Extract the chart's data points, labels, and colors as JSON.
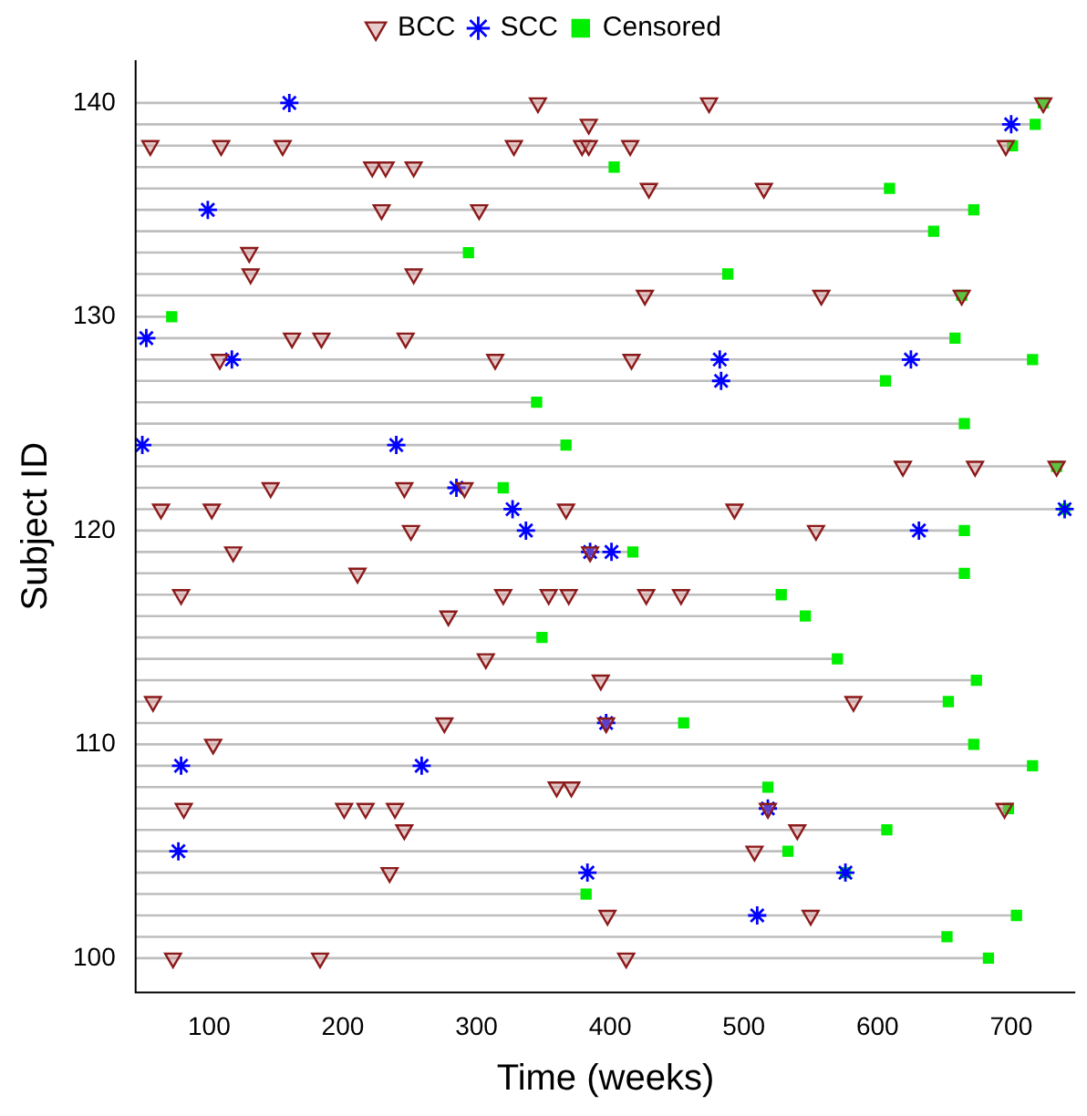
{
  "chart_data": {
    "type": "scatter",
    "xlabel": "Time (weeks)",
    "ylabel": "Subject ID",
    "xlim": [
      45,
      748
    ],
    "xticks": [
      100,
      200,
      300,
      400,
      500,
      600,
      700
    ],
    "ylim": [
      98.4,
      142
    ],
    "yticks": [
      100,
      110,
      120,
      130,
      140
    ],
    "legend": "top",
    "grid": false,
    "series": [
      {
        "name": "BCC",
        "color": "#8b1a1a",
        "marker": "triangle",
        "x": [
          346,
          474,
          724,
          384,
          56,
          109,
          155,
          328,
          379,
          384,
          415,
          696,
          222,
          232,
          253,
          429,
          515,
          229,
          302,
          130,
          131,
          253,
          426,
          558,
          663,
          162,
          184,
          247,
          108,
          314,
          416,
          619,
          673,
          734,
          146,
          246,
          291,
          64,
          102,
          367,
          493,
          251,
          554,
          118,
          385,
          211,
          79,
          320,
          354,
          369,
          427,
          453,
          279,
          307,
          393,
          58,
          582,
          276,
          397,
          103,
          360,
          371,
          81,
          201,
          217,
          239,
          518,
          695,
          246,
          540,
          508,
          235,
          398,
          550,
          73,
          183,
          412
        ],
        "values": [
          140,
          140,
          140,
          139,
          138,
          138,
          138,
          138,
          138,
          138,
          138,
          138,
          137,
          137,
          137,
          136,
          136,
          135,
          135,
          133,
          132,
          132,
          131,
          131,
          131,
          129,
          129,
          129,
          128,
          128,
          128,
          123,
          123,
          123,
          122,
          122,
          122,
          121,
          121,
          121,
          121,
          120,
          120,
          119,
          119,
          118,
          117,
          117,
          117,
          117,
          117,
          117,
          116,
          114,
          113,
          112,
          112,
          111,
          111,
          110,
          108,
          108,
          107,
          107,
          107,
          107,
          107,
          107,
          106,
          106,
          105,
          104,
          102,
          102,
          100,
          100,
          100
        ]
      },
      {
        "name": "SCC",
        "color": "#0000ff",
        "marker": "cross",
        "x": [
          160,
          700,
          99,
          53,
          117,
          482,
          625,
          483,
          50,
          240,
          285,
          327,
          740,
          337,
          631,
          385,
          401,
          397,
          79,
          259,
          518,
          77,
          383,
          576,
          510
        ],
        "values": [
          140,
          139,
          135,
          129,
          128,
          128,
          128,
          127,
          124,
          124,
          122,
          121,
          121,
          120,
          120,
          119,
          119,
          111,
          109,
          109,
          107,
          105,
          104,
          104,
          102
        ]
      },
      {
        "type": "line",
        "color": "#bebebe",
        "marker": "none",
        "x": [
          45,
          683
        ],
        "values": [
          100,
          100
        ]
      },
      {
        "type": "line",
        "color": "#bebebe",
        "marker": "none",
        "x": [
          45,
          652
        ],
        "values": [
          101,
          101
        ]
      },
      {
        "type": "line",
        "color": "#bebebe",
        "marker": "none",
        "x": [
          45,
          704
        ],
        "values": [
          102,
          102
        ]
      },
      {
        "type": "line",
        "color": "#bebebe",
        "marker": "none",
        "x": [
          45,
          382
        ],
        "values": [
          103,
          103
        ]
      },
      {
        "type": "line",
        "color": "#bebebe",
        "marker": "none",
        "x": [
          45,
          576
        ],
        "values": [
          104,
          104
        ]
      },
      {
        "type": "line",
        "color": "#bebebe",
        "marker": "none",
        "x": [
          45,
          533
        ],
        "values": [
          105,
          105
        ]
      },
      {
        "type": "line",
        "color": "#bebebe",
        "marker": "none",
        "x": [
          45,
          607
        ],
        "values": [
          106,
          106
        ]
      },
      {
        "type": "line",
        "color": "#bebebe",
        "marker": "none",
        "x": [
          45,
          698
        ],
        "values": [
          107,
          107
        ]
      },
      {
        "type": "line",
        "color": "#bebebe",
        "marker": "none",
        "x": [
          45,
          518
        ],
        "values": [
          108,
          108
        ]
      },
      {
        "type": "line",
        "color": "#bebebe",
        "marker": "none",
        "x": [
          45,
          716
        ],
        "values": [
          109,
          109
        ]
      },
      {
        "type": "line",
        "color": "#bebebe",
        "marker": "none",
        "x": [
          45,
          672
        ],
        "values": [
          110,
          110
        ]
      },
      {
        "type": "line",
        "color": "#bebebe",
        "marker": "none",
        "x": [
          45,
          455
        ],
        "values": [
          111,
          111
        ]
      },
      {
        "type": "line",
        "color": "#bebebe",
        "marker": "none",
        "x": [
          45,
          653
        ],
        "values": [
          112,
          112
        ]
      },
      {
        "type": "line",
        "color": "#bebebe",
        "marker": "none",
        "x": [
          45,
          674
        ],
        "values": [
          113,
          113
        ]
      },
      {
        "type": "line",
        "color": "#bebebe",
        "marker": "none",
        "x": [
          45,
          570
        ],
        "values": [
          114,
          114
        ]
      },
      {
        "type": "line",
        "color": "#bebebe",
        "marker": "none",
        "x": [
          45,
          349
        ],
        "values": [
          115,
          115
        ]
      },
      {
        "type": "line",
        "color": "#bebebe",
        "marker": "none",
        "x": [
          45,
          546
        ],
        "values": [
          116,
          116
        ]
      },
      {
        "type": "line",
        "color": "#bebebe",
        "marker": "none",
        "x": [
          45,
          528
        ],
        "values": [
          117,
          117
        ]
      },
      {
        "type": "line",
        "color": "#bebebe",
        "marker": "none",
        "x": [
          45,
          665
        ],
        "values": [
          118,
          118
        ]
      },
      {
        "type": "line",
        "color": "#bebebe",
        "marker": "none",
        "x": [
          45,
          417
        ],
        "values": [
          119,
          119
        ]
      },
      {
        "type": "line",
        "color": "#bebebe",
        "marker": "none",
        "x": [
          45,
          665
        ],
        "values": [
          120,
          120
        ]
      },
      {
        "type": "line",
        "color": "#bebebe",
        "marker": "none",
        "x": [
          45,
          740
        ],
        "values": [
          121,
          121
        ]
      },
      {
        "type": "line",
        "color": "#bebebe",
        "marker": "none",
        "x": [
          45,
          320
        ],
        "values": [
          122,
          122
        ]
      },
      {
        "type": "line",
        "color": "#bebebe",
        "marker": "none",
        "x": [
          45,
          734
        ],
        "values": [
          123,
          123
        ]
      },
      {
        "type": "line",
        "color": "#bebebe",
        "marker": "none",
        "x": [
          45,
          367
        ],
        "values": [
          124,
          124
        ]
      },
      {
        "type": "line",
        "color": "#bebebe",
        "marker": "none",
        "x": [
          45,
          665
        ],
        "values": [
          125,
          125
        ]
      },
      {
        "type": "line",
        "color": "#bebebe",
        "marker": "none",
        "x": [
          45,
          345
        ],
        "values": [
          126,
          126
        ]
      },
      {
        "type": "line",
        "color": "#bebebe",
        "marker": "none",
        "x": [
          45,
          606
        ],
        "values": [
          127,
          127
        ]
      },
      {
        "type": "line",
        "color": "#bebebe",
        "marker": "none",
        "x": [
          45,
          716
        ],
        "values": [
          128,
          128
        ]
      },
      {
        "type": "line",
        "color": "#bebebe",
        "marker": "none",
        "x": [
          45,
          658
        ],
        "values": [
          129,
          129
        ]
      },
      {
        "type": "line",
        "color": "#bebebe",
        "marker": "none",
        "x": [
          45,
          72
        ],
        "values": [
          130,
          130
        ]
      },
      {
        "type": "line",
        "color": "#bebebe",
        "marker": "none",
        "x": [
          45,
          663
        ],
        "values": [
          131,
          131
        ]
      },
      {
        "type": "line",
        "color": "#bebebe",
        "marker": "none",
        "x": [
          45,
          488
        ],
        "values": [
          132,
          132
        ]
      },
      {
        "type": "line",
        "color": "#bebebe",
        "marker": "none",
        "x": [
          45,
          294
        ],
        "values": [
          133,
          133
        ]
      },
      {
        "type": "line",
        "color": "#bebebe",
        "marker": "none",
        "x": [
          45,
          642
        ],
        "values": [
          134,
          134
        ]
      },
      {
        "type": "line",
        "color": "#bebebe",
        "marker": "none",
        "x": [
          45,
          672
        ],
        "values": [
          135,
          135
        ]
      },
      {
        "type": "line",
        "color": "#bebebe",
        "marker": "none",
        "x": [
          45,
          609
        ],
        "values": [
          136,
          136
        ]
      },
      {
        "type": "line",
        "color": "#bebebe",
        "marker": "none",
        "x": [
          45,
          403
        ],
        "values": [
          137,
          137
        ]
      },
      {
        "type": "line",
        "color": "#bebebe",
        "marker": "none",
        "x": [
          45,
          701
        ],
        "values": [
          138,
          138
        ]
      },
      {
        "type": "line",
        "color": "#bebebe",
        "marker": "none",
        "x": [
          45,
          718
        ],
        "values": [
          139,
          139
        ]
      },
      {
        "type": "line",
        "color": "#bebebe",
        "marker": "none",
        "x": [
          45,
          724
        ],
        "values": [
          140,
          140
        ]
      },
      {
        "name": "Censored",
        "color": "#00ee00",
        "marker": "square",
        "x": [
          683,
          652,
          704,
          382,
          576,
          533,
          607,
          698,
          518,
          716,
          672,
          455,
          653,
          674,
          570,
          349,
          546,
          528,
          665,
          417,
          665,
          740,
          320,
          734,
          367,
          665,
          345,
          606,
          716,
          658,
          72,
          663,
          488,
          294,
          642,
          672,
          609,
          403,
          701,
          718,
          724
        ],
        "values": [
          100,
          101,
          102,
          103,
          104,
          105,
          106,
          107,
          108,
          109,
          110,
          111,
          112,
          113,
          114,
          115,
          116,
          117,
          118,
          119,
          120,
          121,
          122,
          123,
          124,
          125,
          126,
          127,
          128,
          129,
          130,
          131,
          132,
          133,
          134,
          135,
          136,
          137,
          138,
          139,
          140
        ]
      }
    ]
  }
}
